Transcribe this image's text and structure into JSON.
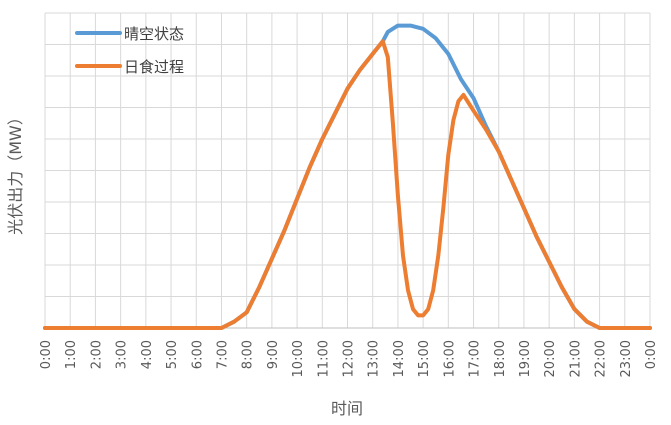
{
  "chart_data": {
    "type": "line",
    "xlabel": "时间",
    "ylabel": "光伏出力（MW）",
    "x_ticks": [
      "0:00",
      "1:00",
      "2:00",
      "3:00",
      "4:00",
      "5:00",
      "6:00",
      "7:00",
      "8:00",
      "9:00",
      "10:00",
      "11:00",
      "12:00",
      "13:00",
      "14:00",
      "15:00",
      "16:00",
      "17:00",
      "18:00",
      "19:00",
      "20:00",
      "21:00",
      "22:00",
      "23:00",
      "0:00"
    ],
    "xlim": [
      0,
      24
    ],
    "ylim": [
      0,
      1
    ],
    "y_ticks_labeled": false,
    "grid": true,
    "legend_position": "top-left",
    "series": [
      {
        "name": "晴空状态",
        "color": "#5B9BD5",
        "points": [
          [
            0,
            0
          ],
          [
            7,
            0
          ],
          [
            7.5,
            0.02
          ],
          [
            8,
            0.05
          ],
          [
            8.5,
            0.13
          ],
          [
            9,
            0.22
          ],
          [
            9.5,
            0.31
          ],
          [
            10,
            0.41
          ],
          [
            10.5,
            0.51
          ],
          [
            11,
            0.6
          ],
          [
            11.5,
            0.68
          ],
          [
            12,
            0.76
          ],
          [
            12.5,
            0.82
          ],
          [
            13,
            0.87
          ],
          [
            13.4,
            0.91
          ],
          [
            13.6,
            0.94
          ],
          [
            14,
            0.96
          ],
          [
            14.5,
            0.96
          ],
          [
            15,
            0.95
          ],
          [
            15.5,
            0.92
          ],
          [
            16,
            0.87
          ],
          [
            16.5,
            0.79
          ],
          [
            17,
            0.73
          ],
          [
            17.5,
            0.64
          ],
          [
            18,
            0.56
          ],
          [
            18.5,
            0.47
          ],
          [
            19,
            0.38
          ],
          [
            19.5,
            0.29
          ],
          [
            20,
            0.21
          ],
          [
            20.5,
            0.13
          ],
          [
            21,
            0.06
          ],
          [
            21.5,
            0.02
          ],
          [
            22,
            0
          ],
          [
            24,
            0
          ]
        ]
      },
      {
        "name": "日食过程",
        "color": "#ED7D31",
        "points": [
          [
            0,
            0
          ],
          [
            7,
            0
          ],
          [
            7.5,
            0.02
          ],
          [
            8,
            0.05
          ],
          [
            8.5,
            0.13
          ],
          [
            9,
            0.22
          ],
          [
            9.5,
            0.31
          ],
          [
            10,
            0.41
          ],
          [
            10.5,
            0.51
          ],
          [
            11,
            0.6
          ],
          [
            11.5,
            0.68
          ],
          [
            12,
            0.76
          ],
          [
            12.5,
            0.82
          ],
          [
            13,
            0.87
          ],
          [
            13.4,
            0.91
          ],
          [
            13.6,
            0.86
          ],
          [
            13.8,
            0.65
          ],
          [
            14,
            0.42
          ],
          [
            14.2,
            0.23
          ],
          [
            14.4,
            0.12
          ],
          [
            14.6,
            0.06
          ],
          [
            14.8,
            0.04
          ],
          [
            15,
            0.04
          ],
          [
            15.2,
            0.06
          ],
          [
            15.4,
            0.12
          ],
          [
            15.6,
            0.23
          ],
          [
            15.8,
            0.38
          ],
          [
            16,
            0.55
          ],
          [
            16.2,
            0.66
          ],
          [
            16.4,
            0.72
          ],
          [
            16.6,
            0.74
          ],
          [
            17,
            0.69
          ],
          [
            17.5,
            0.63
          ],
          [
            18,
            0.56
          ],
          [
            18.5,
            0.47
          ],
          [
            19,
            0.38
          ],
          [
            19.5,
            0.29
          ],
          [
            20,
            0.21
          ],
          [
            20.5,
            0.13
          ],
          [
            21,
            0.06
          ],
          [
            21.5,
            0.02
          ],
          [
            22,
            0
          ],
          [
            24,
            0
          ]
        ]
      }
    ]
  }
}
